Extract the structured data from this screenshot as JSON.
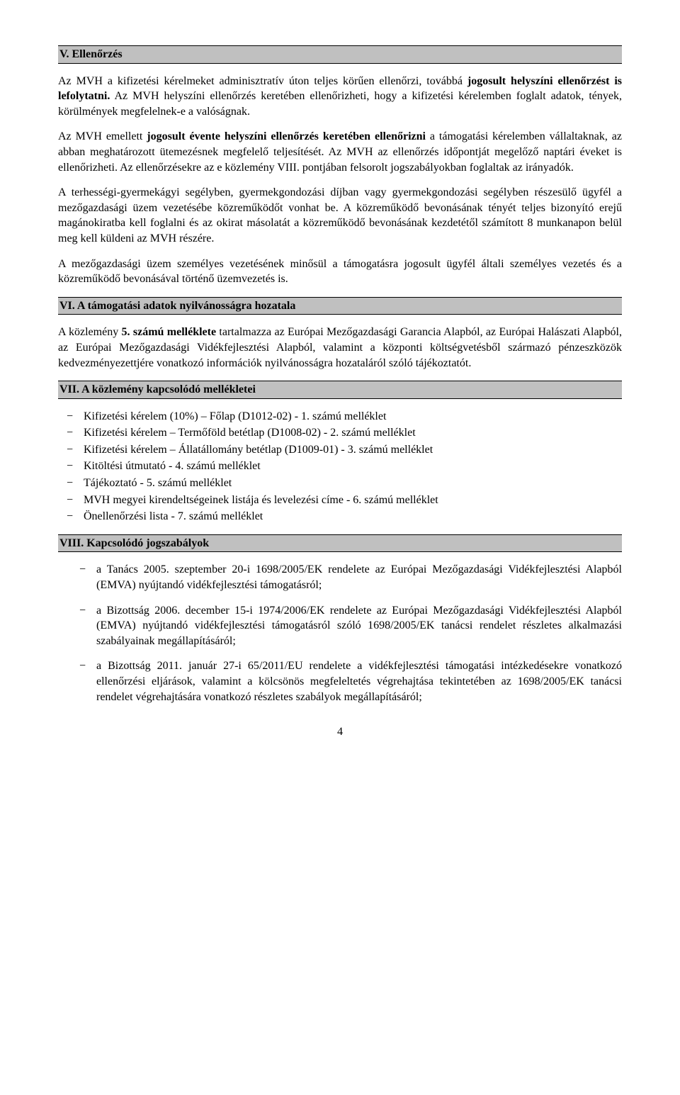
{
  "section5": {
    "title": "V. Ellenőrzés",
    "p1_a": "Az MVH a kifizetési kérelmeket adminisztratív úton teljes körűen ellenőrzi, továbbá ",
    "p1_b": "jogosult helyszíni ellenőrzést is lefolytatni.",
    "p1_c": " Az MVH helyszíni ellenőrzés keretében ellenőrizheti, hogy a kifizetési kérelemben foglalt adatok, tények, körülmények megfelelnek-e a valóságnak.",
    "p2_a": "Az MVH emellett ",
    "p2_b": "jogosult évente helyszíni ellenőrzés keretében ellenőrizni",
    "p2_c": " a támogatási kérelemben vállaltaknak, az abban meghatározott ütemezésnek megfelelő teljesítését. Az MVH az ellenőrzés időpontját megelőző naptári éveket is ellenőrizheti. Az ellenőrzésekre az e közlemény VIII. pontjában felsorolt jogszabályokban foglaltak az irányadók.",
    "p3": "A terhességi-gyermekágyi segélyben, gyermekgondozási díjban vagy gyermekgondozási segélyben részesülő ügyfél a mezőgazdasági üzem vezetésébe közreműködőt vonhat be. A közreműködő bevonásának tényét teljes bizonyító erejű magánokiratba kell foglalni és az okirat másolatát a közreműködő bevonásának kezdetétől számított 8 munkanapon belül meg kell küldeni az MVH részére.",
    "p4": "A mezőgazdasági üzem személyes vezetésének minősül a támogatásra jogosult ügyfél általi személyes vezetés és a közreműködő bevonásával történő üzemvezetés is."
  },
  "section6": {
    "title": "VI. A támogatási adatok nyilvánosságra hozatala",
    "p1_a": "A közlemény ",
    "p1_b": "5. számú melléklete",
    "p1_c": " tartalmazza az Európai Mezőgazdasági Garancia Alapból, az Európai Halászati Alapból, az Európai Mezőgazdasági Vidékfejlesztési Alapból, valamint a központi költségvetésből származó pénzeszközök kedvezményezettjére vonatkozó információk nyilvánosságra hozataláról szóló tájékoztatót."
  },
  "section7": {
    "title": "VII. A közlemény kapcsolódó mellékletei",
    "items": [
      "Kifizetési kérelem (10%) – Főlap (D1012-02) - 1. számú melléklet",
      "Kifizetési kérelem – Termőföld betétlap (D1008-02) - 2. számú melléklet",
      "Kifizetési kérelem – Állatállomány betétlap (D1009-01) - 3. számú melléklet",
      "Kitöltési útmutató - 4. számú melléklet",
      "Tájékoztató - 5. számú melléklet",
      "MVH megyei kirendeltségeinek listája és levelezési címe - 6. számú melléklet",
      "Önellenőrzési lista - 7. számú melléklet"
    ]
  },
  "section8": {
    "title": "VIII. Kapcsolódó jogszabályok",
    "items": [
      "a Tanács 2005. szeptember 20-i 1698/2005/EK rendelete az Európai Mezőgazdasági Vidékfejlesztési Alapból (EMVA) nyújtandó vidékfejlesztési támogatásról;",
      "a Bizottság 2006. december 15-i 1974/2006/EK rendelete az Európai Mezőgazdasági Vidékfejlesztési Alapból (EMVA) nyújtandó vidékfejlesztési támogatásról szóló 1698/2005/EK tanácsi rendelet részletes alkalmazási szabályainak megállapításáról;",
      "a Bizottság 2011. január 27-i 65/2011/EU rendelete a vidékfejlesztési támogatási intézkedésekre vonatkozó ellenőrzési eljárások, valamint a kölcsönös megfeleltetés végrehajtása tekintetében az 1698/2005/EK tanácsi rendelet végrehajtására vonatkozó részletes szabályok megállapításáról;"
    ]
  },
  "pageNumber": "4"
}
